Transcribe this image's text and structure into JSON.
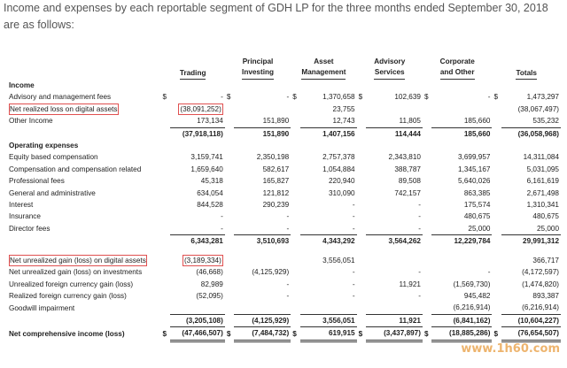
{
  "intro": "Income and expenses by each reportable segment of GDH LP for the three months ended September 30, 2018 are as follows:",
  "columns": [
    {
      "l1": "",
      "l2": "Trading"
    },
    {
      "l1": "Principal",
      "l2": "Investing"
    },
    {
      "l1": "Asset",
      "l2": "Management"
    },
    {
      "l1": "Advisory",
      "l2": "Services"
    },
    {
      "l1": "Corporate",
      "l2": "and Other"
    },
    {
      "l1": "",
      "l2": "Totals"
    }
  ],
  "sections": {
    "income": "Income",
    "opex": "Operating expenses"
  },
  "rows": {
    "adv": {
      "label": "Advisory and management fees",
      "d": [
        "$",
        "$",
        "$",
        "$",
        "$",
        "$"
      ],
      "v": [
        "-",
        "-",
        "1,370,658",
        "102,639",
        "-",
        "1,473,297"
      ]
    },
    "nrl": {
      "label": "Net realized loss on digital assets",
      "v": [
        "(38,091,252)",
        "",
        "23,755",
        "",
        "",
        "(38,067,497)"
      ]
    },
    "oth": {
      "label": "Other Income",
      "v": [
        "173,134",
        "151,890",
        "12,743",
        "11,805",
        "185,660",
        "535,232"
      ]
    },
    "inc_total": {
      "v": [
        "(37,918,118)",
        "151,890",
        "1,407,156",
        "114,444",
        "185,660",
        "(36,058,968)"
      ]
    },
    "eq": {
      "label": "Equity based compensation",
      "v": [
        "3,159,741",
        "2,350,198",
        "2,757,378",
        "2,343,810",
        "3,699,957",
        "14,311,084"
      ]
    },
    "comp": {
      "label": "Compensation and compensation related",
      "v": [
        "1,659,640",
        "582,617",
        "1,054,884",
        "388,787",
        "1,345,167",
        "5,031,095"
      ]
    },
    "prof": {
      "label": "Professional fees",
      "v": [
        "45,318",
        "165,827",
        "220,940",
        "89,508",
        "5,640,026",
        "6,161,619"
      ]
    },
    "gen": {
      "label": "General and administrative",
      "v": [
        "634,054",
        "121,812",
        "310,090",
        "742,157",
        "863,385",
        "2,671,498"
      ]
    },
    "int": {
      "label": "Interest",
      "v": [
        "844,528",
        "290,239",
        "-",
        "-",
        "175,574",
        "1,310,341"
      ]
    },
    "ins": {
      "label": "Insurance",
      "v": [
        "-",
        "-",
        "-",
        "-",
        "480,675",
        "480,675"
      ]
    },
    "dir": {
      "label": "Director fees",
      "v": [
        "-",
        "-",
        "-",
        "-",
        "25,000",
        "25,000"
      ]
    },
    "opex_total": {
      "v": [
        "6,343,281",
        "3,510,693",
        "4,343,292",
        "3,564,262",
        "12,229,784",
        "29,991,312"
      ]
    },
    "nug_da": {
      "label": "Net unrealized gain (loss) on digital assets",
      "v": [
        "(3,189,334)",
        "",
        "3,556,051",
        "",
        "",
        "366,717"
      ]
    },
    "nug_inv": {
      "label": "Net unrealized gain (loss) on investments",
      "v": [
        "(46,668)",
        "(4,125,929)",
        "-",
        "-",
        "-",
        "(4,172,597)"
      ]
    },
    "ufx": {
      "label": "Unrealized foreign currency gain (loss)",
      "v": [
        "82,989",
        "-",
        "-",
        "11,921",
        "(1,569,730)",
        "(1,474,820)"
      ]
    },
    "rfx": {
      "label": "Realized foreign currency gain (loss)",
      "v": [
        "(52,095)",
        "-",
        "-",
        "-",
        "945,482",
        "893,387"
      ]
    },
    "gw": {
      "label": "Goodwill impairment",
      "v": [
        "",
        "",
        "",
        "",
        "(6,216,914)",
        "(6,216,914)"
      ]
    },
    "other_total": {
      "v": [
        "(3,205,108)",
        "(4,125,929)",
        "3,556,051",
        "11,921",
        "(6,841,162)",
        "(10,604,227)"
      ]
    },
    "net": {
      "label": "Net comprehensive income (loss)",
      "d": [
        "$",
        "$",
        "$",
        "$",
        "$",
        "$"
      ],
      "v": [
        "(47,466,507)",
        "(7,484,732)",
        "619,915",
        "(3,437,897)",
        "(18,885,286)",
        "(76,654,507)"
      ]
    }
  },
  "watermark": "www.1h60.com"
}
